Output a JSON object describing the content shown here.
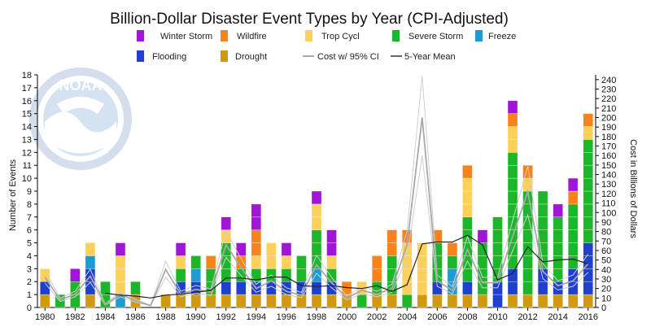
{
  "chart_data": {
    "type": "bar",
    "title": "Billion-Dollar Disaster Event Types by Year (CPI-Adjusted)",
    "ylabel": "Number of Events",
    "y2label": "Cost in Billions of Dollars",
    "ylim": [
      0,
      18
    ],
    "y2lim": [
      0,
      245
    ],
    "yticks": [
      0,
      1,
      2,
      3,
      4,
      5,
      6,
      7,
      8,
      9,
      10,
      11,
      12,
      13,
      14,
      15,
      16,
      17,
      18
    ],
    "y2ticks": [
      0,
      10,
      20,
      30,
      40,
      50,
      60,
      70,
      80,
      90,
      100,
      110,
      120,
      130,
      140,
      150,
      160,
      170,
      180,
      190,
      200,
      210,
      220,
      230,
      240
    ],
    "xticks": [
      1980,
      1982,
      1984,
      1986,
      1988,
      1990,
      1992,
      1994,
      1996,
      1998,
      2000,
      2002,
      2004,
      2006,
      2008,
      2010,
      2012,
      2014,
      2016
    ],
    "years": [
      1980,
      1981,
      1982,
      1983,
      1984,
      1985,
      1986,
      1987,
      1988,
      1989,
      1990,
      1991,
      1992,
      1993,
      1994,
      1995,
      1996,
      1997,
      1998,
      1999,
      2000,
      2001,
      2002,
      2003,
      2004,
      2005,
      2006,
      2007,
      2008,
      2009,
      2010,
      2011,
      2012,
      2013,
      2014,
      2015,
      2016
    ],
    "series": [
      {
        "name": "Drought",
        "key": "drought",
        "color": "#d09a0e",
        "values": [
          1,
          0,
          0,
          1,
          0,
          0,
          1,
          0,
          1,
          1,
          1,
          1,
          1,
          1,
          1,
          1,
          1,
          1,
          1,
          1,
          1,
          0,
          1,
          1,
          0,
          1,
          1,
          1,
          1,
          1,
          0,
          1,
          1,
          1,
          1,
          1,
          1
        ]
      },
      {
        "name": "Flooding",
        "key": "flooding",
        "color": "#1f3fd0",
        "values": [
          1,
          0,
          0,
          2,
          0,
          0,
          0,
          0,
          0,
          1,
          1,
          0,
          1,
          1,
          1,
          1,
          1,
          1,
          1,
          1,
          0,
          0,
          0,
          0,
          0,
          0,
          1,
          0,
          1,
          0,
          2,
          2,
          0,
          2,
          1,
          2,
          4
        ]
      },
      {
        "name": "Freeze",
        "key": "freeze",
        "color": "#1e9bd0",
        "values": [
          0,
          0,
          0,
          1,
          0,
          1,
          0,
          0,
          0,
          0,
          1,
          0,
          0,
          0,
          0,
          0,
          0,
          0,
          1,
          0,
          0,
          0,
          0,
          0,
          0,
          0,
          0,
          2,
          0,
          0,
          0,
          0,
          0,
          0,
          0,
          0,
          0
        ]
      },
      {
        "name": "Severe Storm",
        "key": "severe_storm",
        "color": "#1db52a",
        "values": [
          0,
          1,
          2,
          0,
          2,
          0,
          1,
          0,
          0,
          1,
          1,
          2,
          3,
          1,
          1,
          1,
          1,
          2,
          3,
          1,
          0,
          1,
          1,
          3,
          1,
          0,
          3,
          1,
          5,
          4,
          5,
          9,
          8,
          6,
          5,
          5,
          8
        ]
      },
      {
        "name": "Trop Cycl",
        "key": "trop_cycl",
        "color": "#fdd05a",
        "values": [
          1,
          0,
          0,
          1,
          0,
          3,
          0,
          0,
          0,
          1,
          0,
          0,
          1,
          0,
          1,
          2,
          1,
          0,
          2,
          1,
          0,
          1,
          0,
          0,
          4,
          4,
          0,
          0,
          3,
          0,
          0,
          2,
          1,
          0,
          0,
          0,
          1
        ]
      },
      {
        "name": "Wildfire",
        "key": "wildfire",
        "color": "#f7831c",
        "values": [
          0,
          0,
          0,
          0,
          0,
          0,
          0,
          0,
          0,
          0,
          0,
          1,
          0,
          1,
          2,
          0,
          0,
          0,
          0,
          0,
          1,
          0,
          2,
          2,
          1,
          0,
          1,
          1,
          1,
          0,
          0,
          1,
          1,
          0,
          0,
          1,
          1
        ]
      },
      {
        "name": "Winter Storm",
        "key": "winter_storm",
        "color": "#9f16d6",
        "values": [
          0,
          0,
          1,
          0,
          0,
          1,
          0,
          0,
          0,
          1,
          0,
          0,
          1,
          1,
          2,
          0,
          1,
          0,
          1,
          2,
          0,
          0,
          0,
          0,
          0,
          0,
          0,
          0,
          0,
          1,
          0,
          1,
          0,
          0,
          1,
          1,
          0
        ]
      }
    ],
    "cost": [
      32,
      8,
      14,
      33,
      3,
      14,
      7,
      2,
      40,
      14,
      19,
      16,
      66,
      42,
      20,
      28,
      17,
      13,
      45,
      26,
      10,
      18,
      14,
      20,
      66,
      200,
      28,
      18,
      61,
      26,
      26,
      75,
      122,
      38,
      23,
      28,
      46
    ],
    "five_year_mean": [
      null,
      null,
      null,
      null,
      15,
      13,
      12,
      10,
      13,
      14,
      16,
      18,
      31,
      31,
      29,
      32,
      32,
      23,
      22,
      23,
      21,
      20,
      23,
      17,
      24,
      67,
      69,
      69,
      76,
      66,
      29,
      36,
      64,
      48,
      50,
      51,
      46
    ],
    "grid": false,
    "legend_position": "top"
  },
  "legend": {
    "winter_storm": {
      "label": "Winter Storm",
      "color": "#9f16d6"
    },
    "wildfire": {
      "label": "Wildfire",
      "color": "#f7831c"
    },
    "trop_cycl": {
      "label": "Trop Cycl",
      "color": "#fdd05a"
    },
    "severe_storm": {
      "label": "Severe Storm",
      "color": "#1db52a"
    },
    "freeze": {
      "label": "Freeze",
      "color": "#1e9bd0"
    },
    "flooding": {
      "label": "Flooding",
      "color": "#1f3fd0"
    },
    "drought": {
      "label": "Drought",
      "color": "#d09a0e"
    },
    "cost_ci": {
      "label": "Cost w/ 95% CI",
      "color": "#aaaaaa"
    },
    "mean": {
      "label": "5-Year Mean",
      "color": "#333333"
    }
  },
  "logo": {
    "text": "NOAA",
    "ring_text": "NATIONAL OCEANIC AND ATMOSPHERIC ADMINISTRATION"
  }
}
